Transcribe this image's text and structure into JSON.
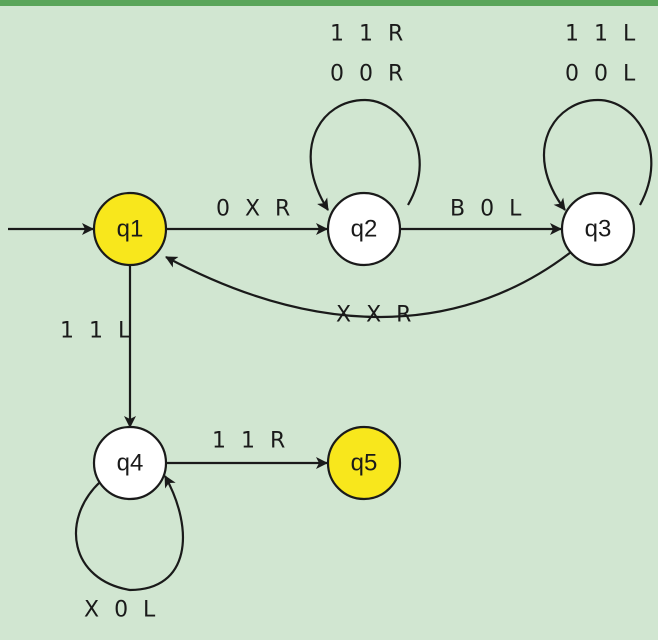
{
  "diagram": {
    "colors": {
      "background": "#d1e6d1",
      "top_bar": "#5aa55a",
      "accept_fill": "#f8e71c",
      "state_fill": "#ffffff",
      "stroke": "#1a1a1a"
    },
    "states": [
      {
        "id": "q1",
        "label": "q1",
        "accept": true
      },
      {
        "id": "q2",
        "label": "q2",
        "accept": false
      },
      {
        "id": "q3",
        "label": "q3",
        "accept": false
      },
      {
        "id": "q4",
        "label": "q4",
        "accept": false
      },
      {
        "id": "q5",
        "label": "q5",
        "accept": true
      }
    ],
    "start_state": "q1",
    "transitions": [
      {
        "id": "t-q1-q2",
        "from": "q1",
        "to": "q2",
        "labels": [
          "0 X R"
        ]
      },
      {
        "id": "t-q2-q2",
        "from": "q2",
        "to": "q2",
        "labels": [
          "1 1 R",
          "0 0 R"
        ]
      },
      {
        "id": "t-q2-q3",
        "from": "q2",
        "to": "q3",
        "labels": [
          "B 0 L"
        ]
      },
      {
        "id": "t-q3-q3",
        "from": "q3",
        "to": "q3",
        "labels": [
          "1 1 L",
          "0 0 L"
        ]
      },
      {
        "id": "t-q3-q1",
        "from": "q3",
        "to": "q1",
        "labels": [
          "X X R"
        ]
      },
      {
        "id": "t-q1-q4",
        "from": "q1",
        "to": "q4",
        "labels": [
          "1 1 L"
        ]
      },
      {
        "id": "t-q4-q5",
        "from": "q4",
        "to": "q5",
        "labels": [
          "1 1 R"
        ]
      },
      {
        "id": "t-q4-q4",
        "from": "q4",
        "to": "q4",
        "labels": [
          "X 0 L"
        ]
      }
    ]
  }
}
